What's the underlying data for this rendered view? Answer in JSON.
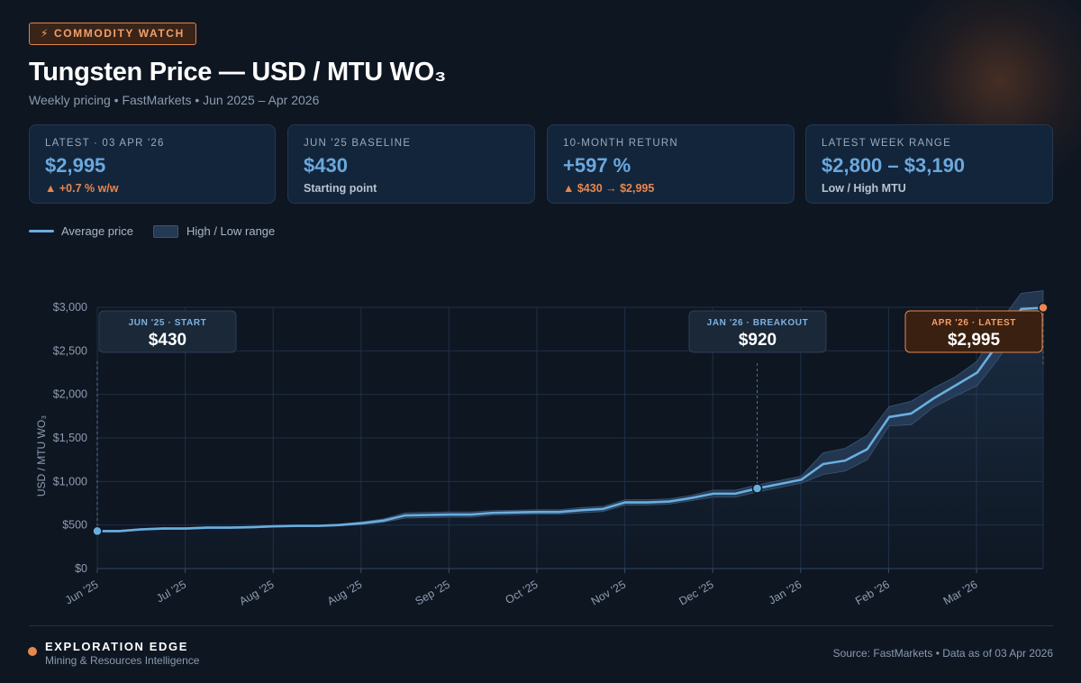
{
  "header": {
    "badge": "⚡ COMMODITY WATCH",
    "title": "Tungsten Price — USD / MTU WO₃",
    "subtitle": "Weekly pricing • FastMarkets • Jun 2025 – Apr 2026"
  },
  "stats": [
    {
      "label": "LATEST · 03 APR '26",
      "value": "$2,995",
      "sub": "▲ +0.7 % w/w",
      "sub_up": true
    },
    {
      "label": "JUN '25 BASELINE",
      "value": "$430",
      "sub": "Starting point",
      "sub_up": false
    },
    {
      "label": "10-MONTH RETURN",
      "value": "+597 %",
      "sub": "▲ $430 → $2,995",
      "sub_up": true
    },
    {
      "label": "LATEST WEEK RANGE",
      "value": "$2,800 – $3,190",
      "sub": "Low / High MTU",
      "sub_up": false
    }
  ],
  "legend": {
    "line": "Average price",
    "band": "High / Low range"
  },
  "colors": {
    "line": "#6aaedf",
    "accent": "#e8874f",
    "band": "#2a4260",
    "grid": "#1f3047"
  },
  "chart_data": {
    "type": "line",
    "ylabel": "USD / MTU WO₃",
    "ylim": [
      0,
      3000
    ],
    "yticks": [
      0,
      500,
      1000,
      1500,
      2000,
      2500,
      3000
    ],
    "ytick_labels": [
      "$0",
      "$500",
      "$1,000",
      "$1,500",
      "$2,000",
      "$2,500",
      "$3,000"
    ],
    "xtick_labels": [
      "Jun '25",
      "Jul '25",
      "Aug '25",
      "Aug '25",
      "Sep '25",
      "Oct '25",
      "Nov '25",
      "Dec '25",
      "Jan '26",
      "Feb '26",
      "Mar '26"
    ],
    "grid": true,
    "series": [
      {
        "name": "Average price",
        "values": [
          430,
          430,
          450,
          460,
          460,
          470,
          470,
          475,
          485,
          490,
          490,
          500,
          520,
          550,
          610,
          615,
          620,
          620,
          640,
          645,
          650,
          650,
          670,
          685,
          760,
          760,
          770,
          810,
          860,
          860,
          920,
          970,
          1020,
          1200,
          1240,
          1370,
          1740,
          1780,
          1950,
          2100,
          2250,
          2600,
          2980,
          2995
        ]
      },
      {
        "name": "High",
        "values": [
          440,
          440,
          460,
          470,
          470,
          480,
          480,
          485,
          495,
          500,
          500,
          510,
          535,
          570,
          640,
          645,
          650,
          650,
          665,
          670,
          675,
          675,
          700,
          715,
          790,
          790,
          800,
          840,
          900,
          900,
          960,
          1010,
          1060,
          1330,
          1380,
          1530,
          1860,
          1920,
          2070,
          2200,
          2380,
          2820,
          3160,
          3190
        ]
      },
      {
        "name": "Low",
        "values": [
          420,
          420,
          440,
          450,
          450,
          460,
          460,
          465,
          475,
          480,
          480,
          490,
          505,
          530,
          580,
          585,
          590,
          590,
          615,
          620,
          625,
          625,
          640,
          655,
          730,
          730,
          740,
          780,
          820,
          820,
          880,
          930,
          980,
          1080,
          1120,
          1250,
          1640,
          1650,
          1850,
          1980,
          2100,
          2420,
          2820,
          2800
        ]
      }
    ],
    "annotations": [
      {
        "label": "JUN '25 · START",
        "value": "$430",
        "point_index": 0
      },
      {
        "label": "JAN '26 · BREAKOUT",
        "value": "$920",
        "point_index": 30
      },
      {
        "label": "APR '26 · LATEST",
        "value": "$2,995",
        "point_index": 43
      }
    ]
  },
  "footer": {
    "brand": "EXPLORATION EDGE",
    "brand_sub": "Mining & Resources Intelligence",
    "source": "Source: FastMarkets • Data as of 03 Apr 2026"
  }
}
